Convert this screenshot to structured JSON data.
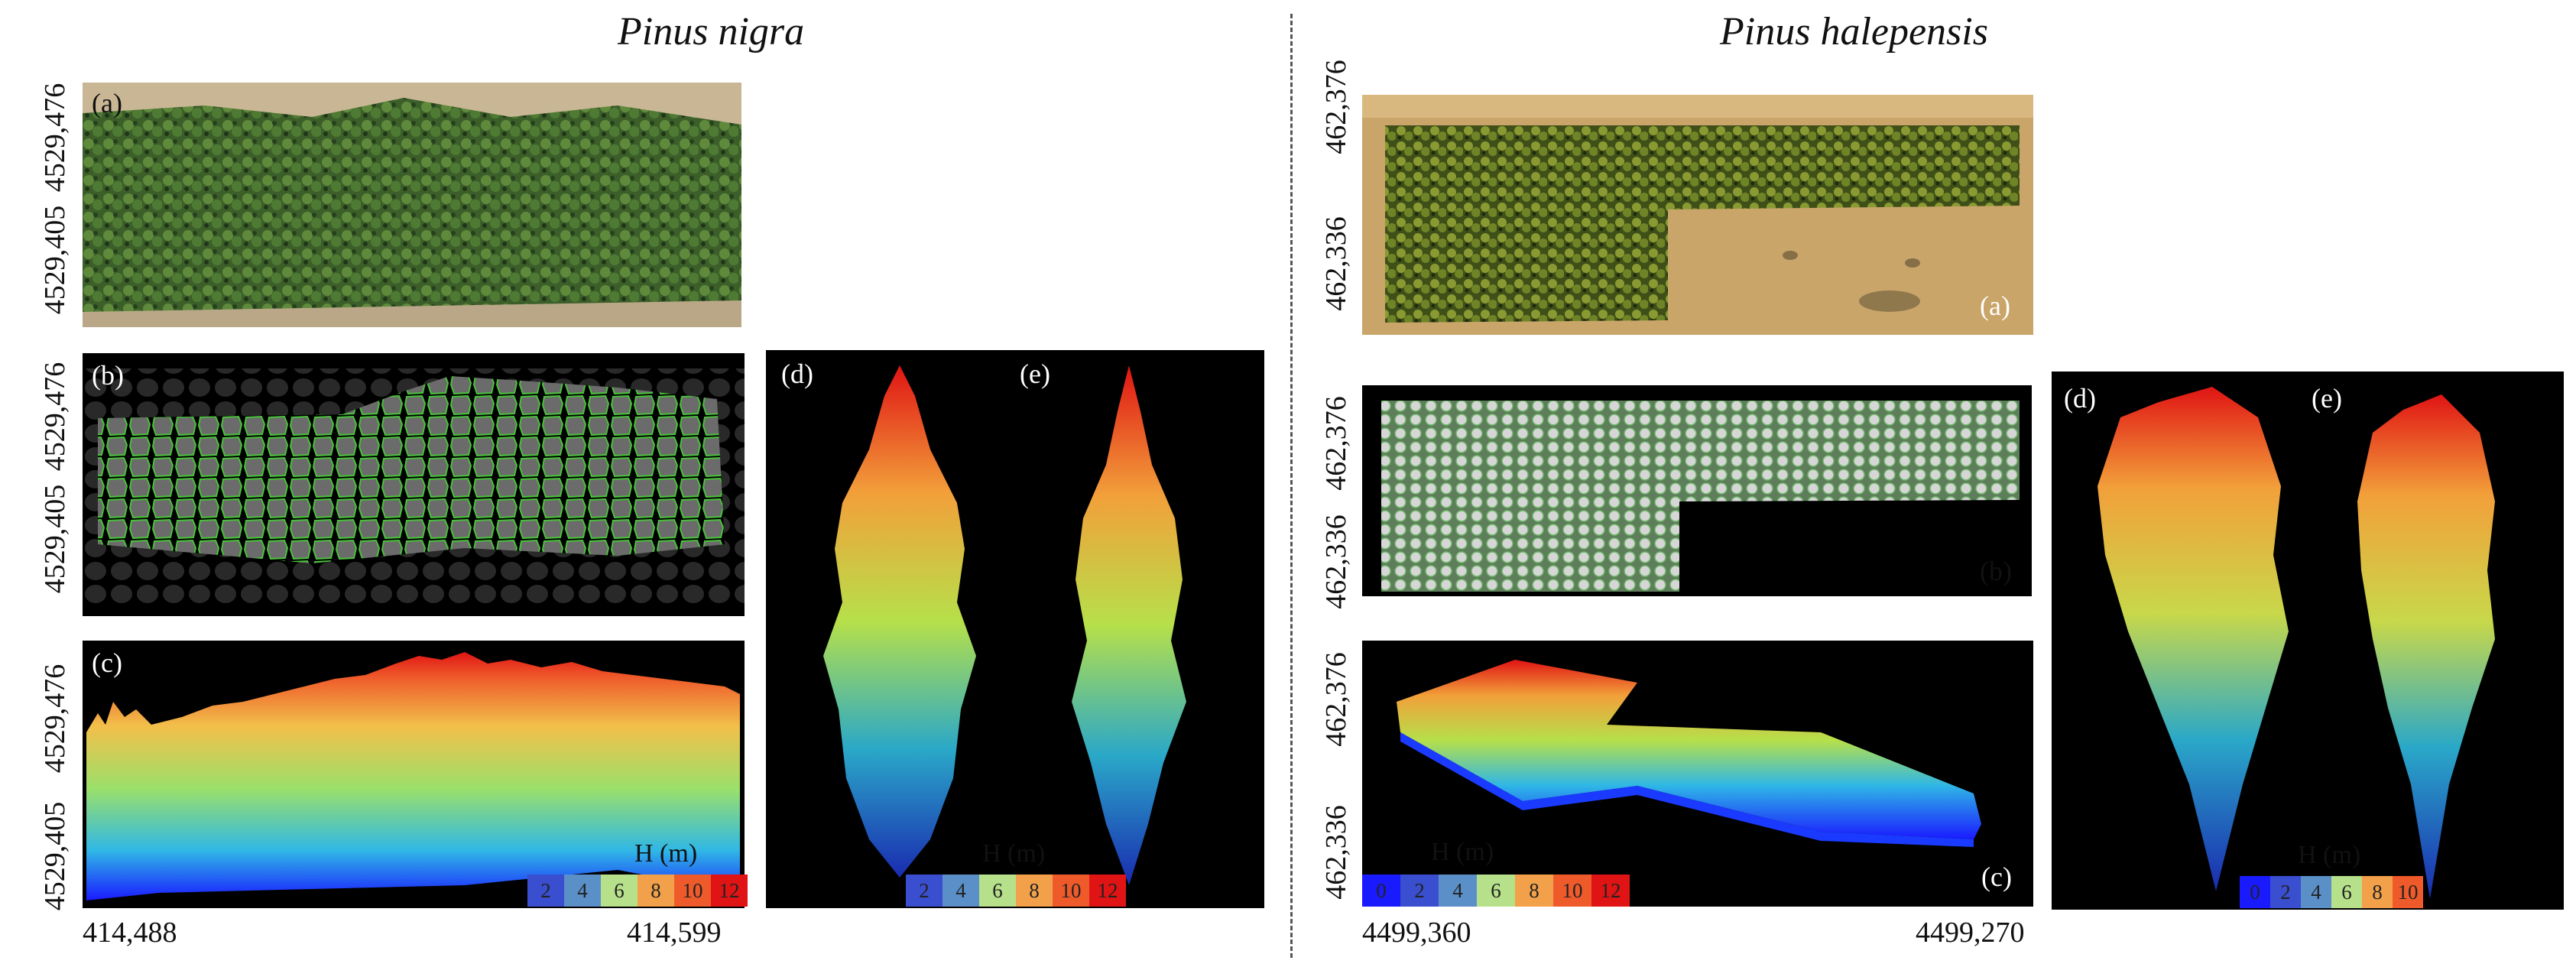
{
  "species": {
    "left": "Pinus nigra",
    "right": "Pinus halepensis"
  },
  "panel_labels": {
    "a": "(a)",
    "b": "(b)",
    "c": "(c)",
    "d": "(d)",
    "e": "(e)"
  },
  "left_coords": {
    "y_top": "4529,476",
    "y_bottom": "4529,405",
    "x_left": "414,488",
    "x_right": "414,599"
  },
  "right_coords": {
    "y_top": "462,376",
    "y_bottom": "462,336",
    "x_left": "4499,360",
    "x_right": "4499,270"
  },
  "legend": {
    "title": "H (m)",
    "nigra_values": [
      "2",
      "4",
      "6",
      "8",
      "10",
      "12"
    ],
    "halepensis_3d_values": [
      "0",
      "2",
      "4",
      "6",
      "8",
      "10",
      "12"
    ],
    "halepensis_tree_values": [
      "0",
      "2",
      "4",
      "6",
      "8",
      "10"
    ]
  },
  "colors": {
    "h0": "#1a1aff",
    "h2": "#3a4fd0",
    "h4": "#5a8fc8",
    "h6": "#b6e08a",
    "h8": "#f2a14a",
    "h10": "#ef5a2a",
    "h12": "#e01414",
    "canopy_green": "#55b04a",
    "panel_bg": "#000000"
  }
}
